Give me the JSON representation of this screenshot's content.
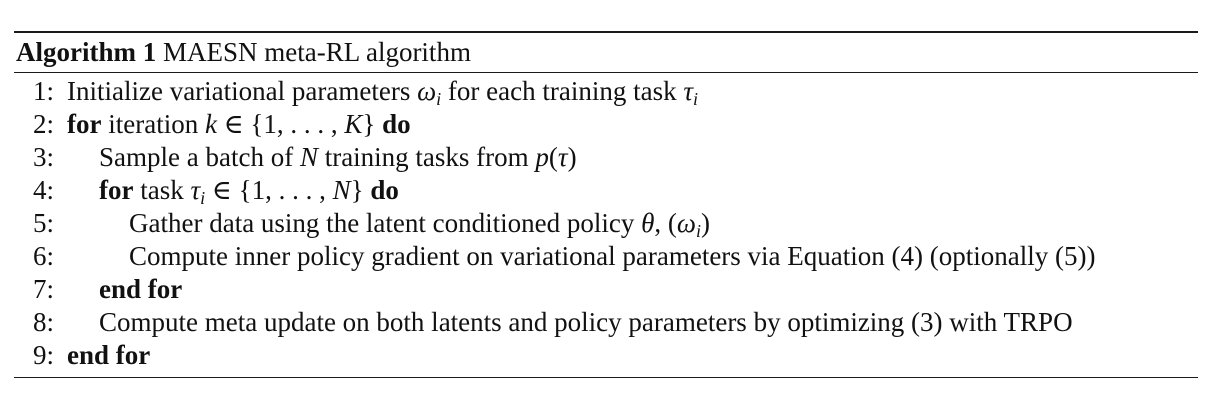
{
  "caption": {
    "label": "Algorithm 1",
    "title": "MAESN meta-RL algorithm"
  },
  "lines": [
    {
      "num": "1:",
      "parts": [
        "Initialize variational parameters ",
        "ω",
        "i",
        " for each training task ",
        "τ",
        "i"
      ]
    },
    {
      "num": "2:",
      "parts": [
        "for",
        " iteration ",
        "k",
        " ∈ {1, . . . , ",
        "K",
        "} ",
        "do"
      ]
    },
    {
      "num": "3:",
      "parts": [
        "Sample a batch of ",
        "N",
        " training tasks from ",
        "p",
        "(",
        "τ",
        ")"
      ]
    },
    {
      "num": "4:",
      "parts": [
        "for",
        " task ",
        "τ",
        "i",
        " ∈ {1, . . . , ",
        "N",
        "} ",
        "do"
      ]
    },
    {
      "num": "5:",
      "parts": [
        "Gather data using the latent conditioned policy ",
        "θ",
        ", (",
        "ω",
        "i",
        ")"
      ]
    },
    {
      "num": "6:",
      "parts": [
        "Compute inner policy gradient on variational parameters via Equation (4) (optionally (5))"
      ]
    },
    {
      "num": "7:",
      "parts": [
        "end for"
      ]
    },
    {
      "num": "8:",
      "parts": [
        "Compute meta update on both latents and policy parameters by optimizing (3) with TRPO"
      ]
    },
    {
      "num": "9:",
      "parts": [
        "end for"
      ]
    }
  ]
}
